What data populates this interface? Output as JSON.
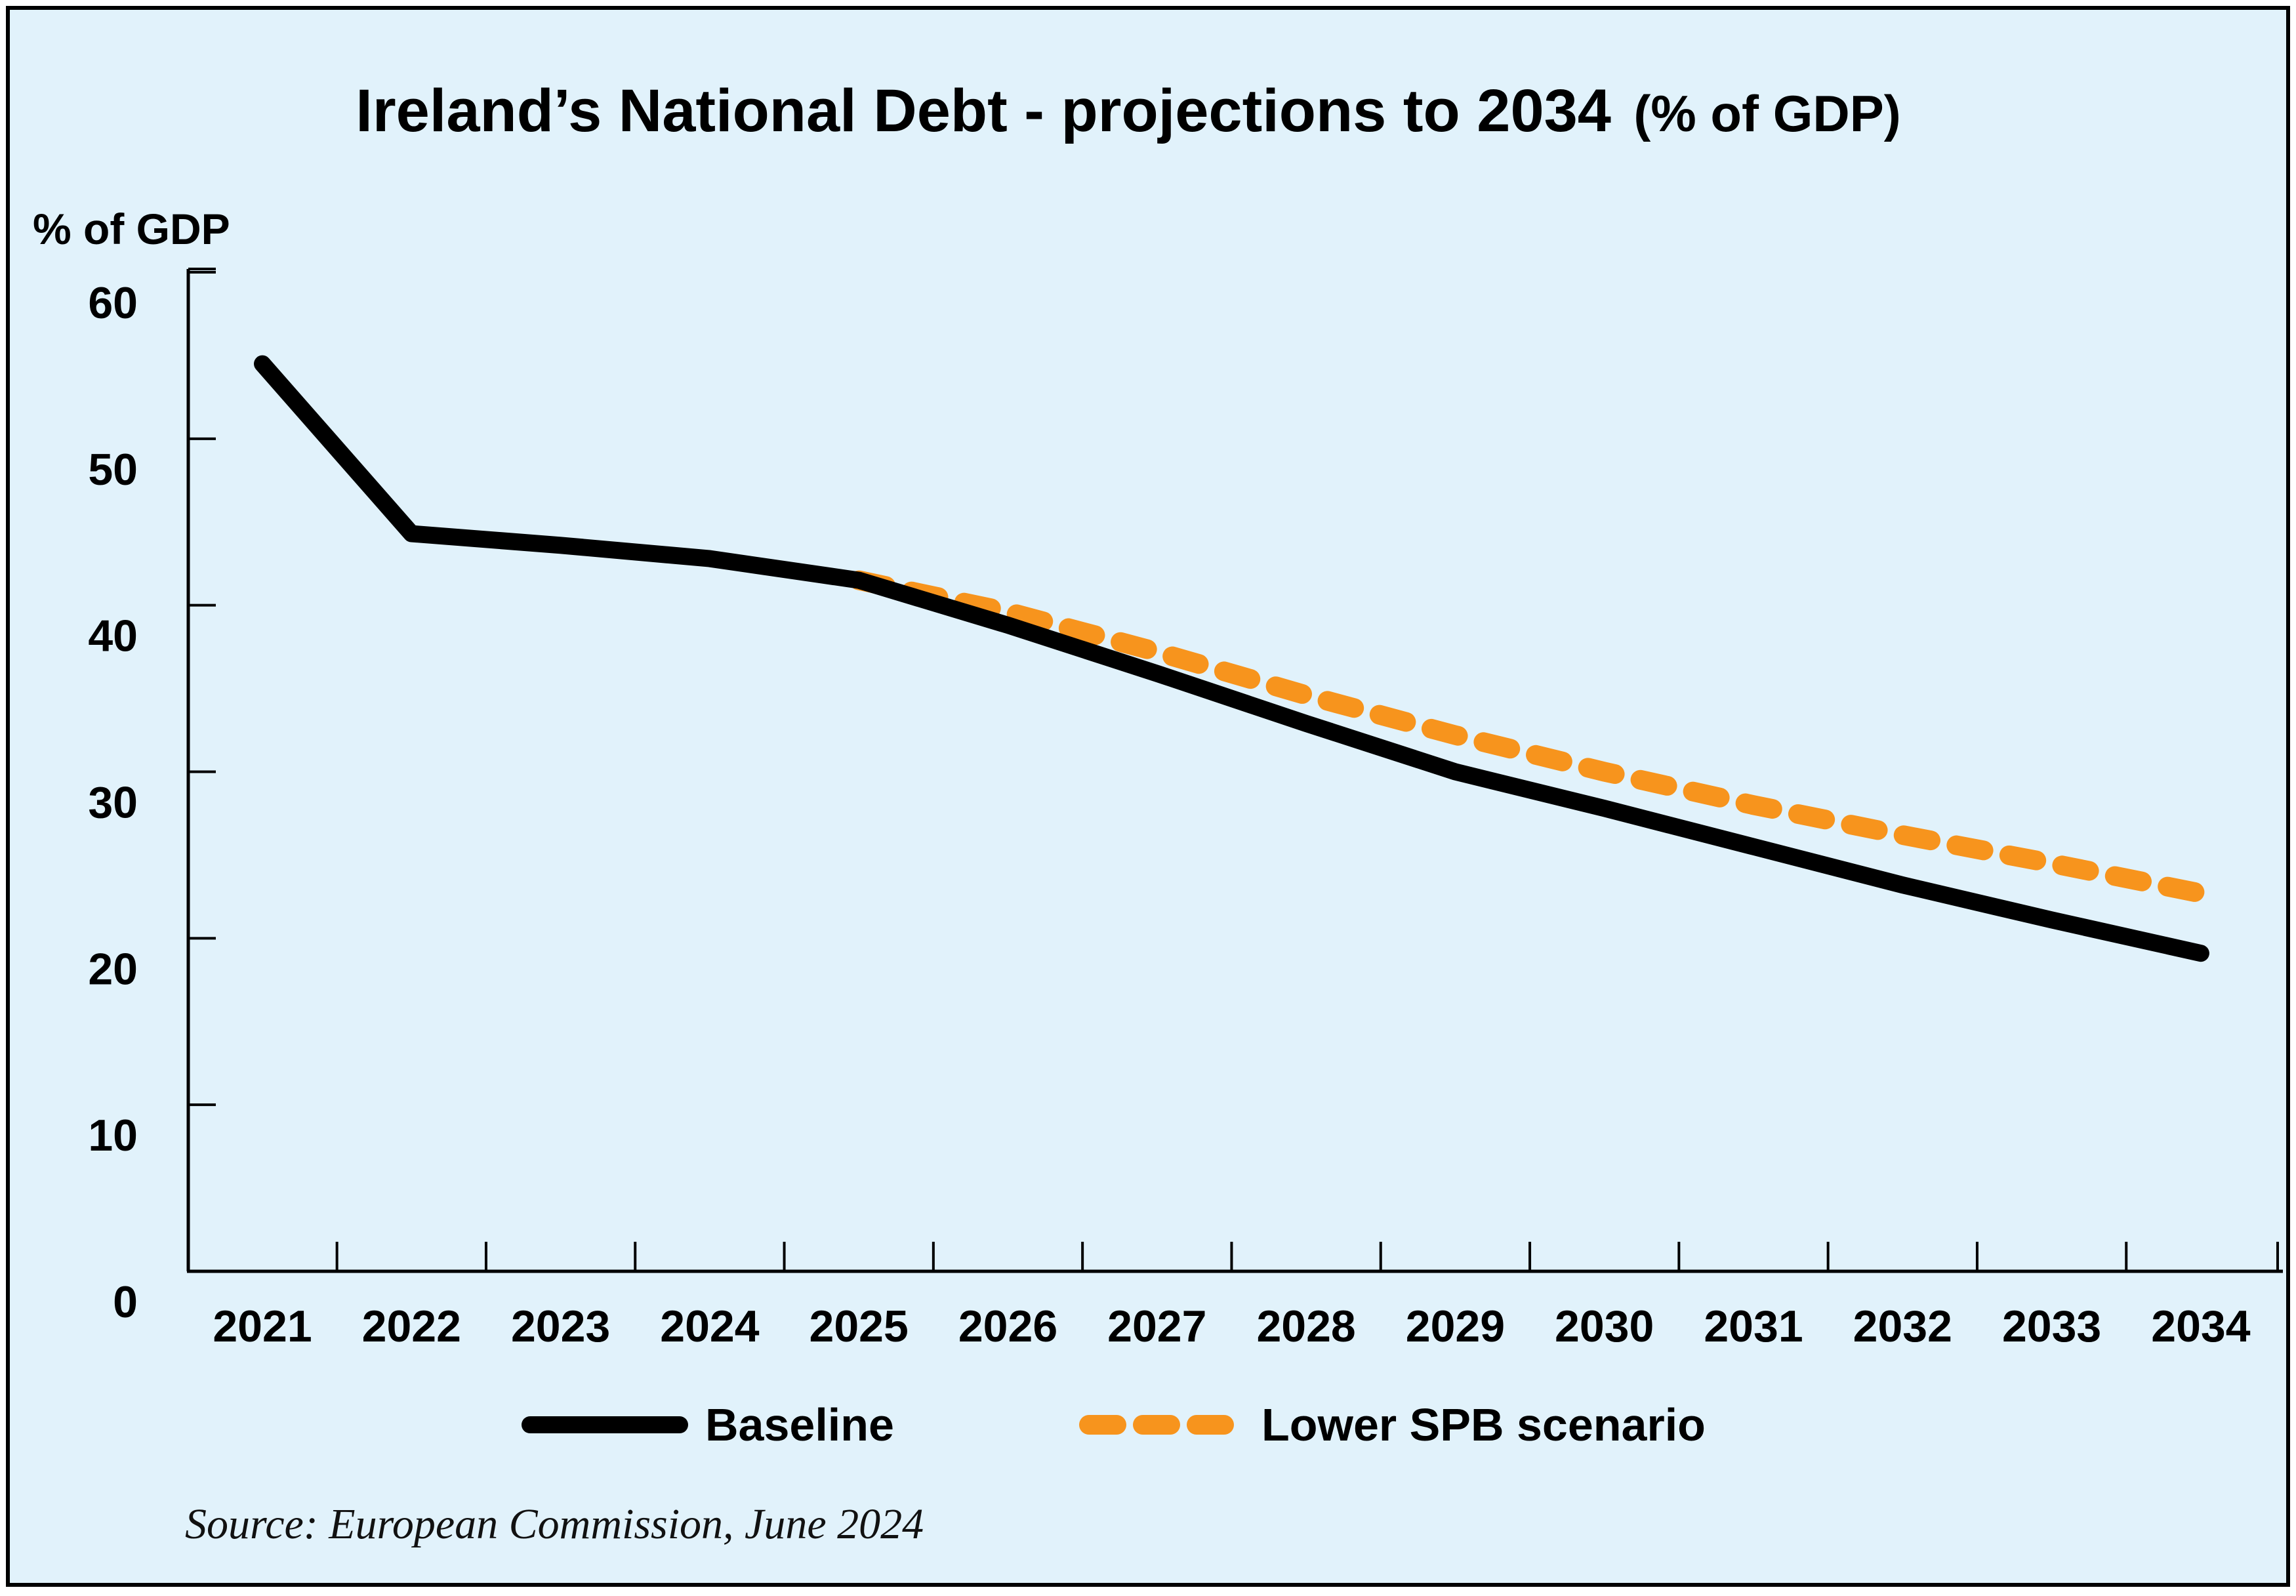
{
  "chart_data": {
    "type": "line",
    "title": "Ireland’s National Debt - projections to 2034",
    "title_suffix": "(% of GDP)",
    "ylabel": "% of GDP",
    "xlabel": "",
    "x": [
      "2021",
      "2022",
      "2023",
      "2024",
      "2025",
      "2026",
      "2027",
      "2028",
      "2029",
      "2030",
      "2031",
      "2032",
      "2033",
      "2034"
    ],
    "yticks": [
      0,
      10,
      20,
      30,
      40,
      50,
      60
    ],
    "ylim": [
      0,
      60
    ],
    "grid": false,
    "legend_position": "bottom",
    "series": [
      {
        "name": "Baseline",
        "style": "solid",
        "color": "#000000",
        "x": [
          "2021",
          "2022",
          "2023",
          "2024",
          "2025",
          "2026",
          "2027",
          "2028",
          "2029",
          "2030",
          "2031",
          "2032",
          "2033",
          "2034"
        ],
        "values": [
          54.5,
          44.3,
          43.6,
          42.8,
          41.5,
          38.8,
          35.9,
          32.9,
          30.0,
          27.8,
          25.5,
          23.2,
          21.1,
          19.1
        ]
      },
      {
        "name": "Lower SPB scenario",
        "style": "dashed",
        "color": "#f7941d",
        "x": [
          "2025",
          "2026",
          "2027",
          "2028",
          "2029",
          "2030",
          "2031",
          "2032",
          "2033",
          "2034"
        ],
        "values": [
          41.5,
          39.6,
          37.2,
          34.6,
          32.2,
          30.0,
          28.0,
          26.2,
          24.5,
          22.7
        ]
      }
    ],
    "source": "Source: European Commission, June 2024"
  },
  "colors": {
    "background": "#e1f2fb",
    "frame": "#000000",
    "baseline": "#000000",
    "lower_spb": "#f7941d"
  }
}
